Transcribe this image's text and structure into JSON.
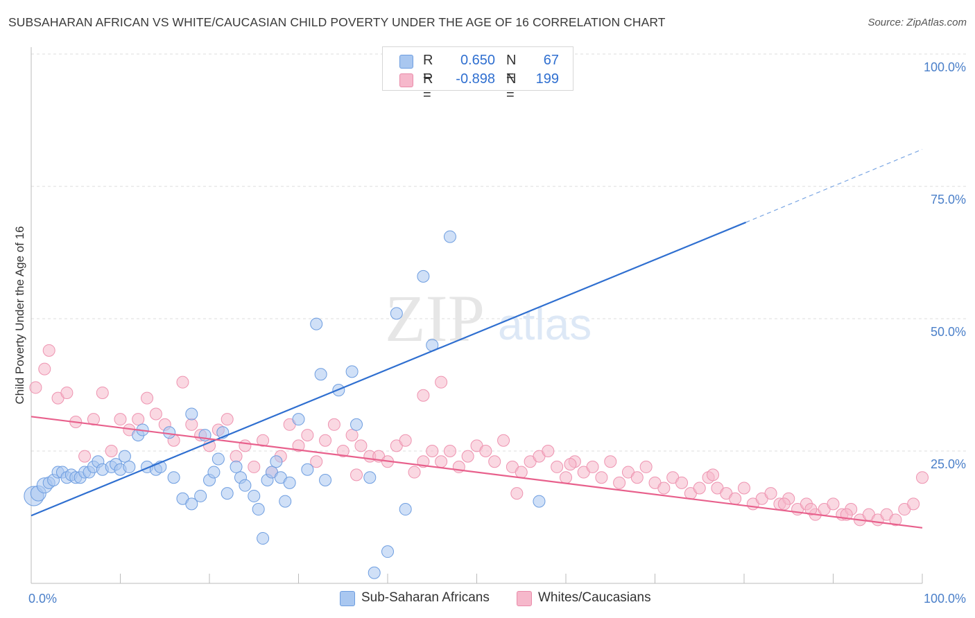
{
  "title": "SUBSAHARAN AFRICAN VS WHITE/CAUCASIAN CHILD POVERTY UNDER THE AGE OF 16 CORRELATION CHART",
  "source": "Source: ZipAtlas.com",
  "watermark": {
    "zip": "ZIP",
    "atlas": "atlas"
  },
  "legend": {
    "rows": [
      {
        "r_label": "R =",
        "r_value": "0.650",
        "n_label": "N =",
        "n_value": "67",
        "color": "#a9c7f0"
      },
      {
        "r_label": "R =",
        "r_value": "-0.898",
        "n_label": "N =",
        "n_value": "199",
        "color": "#f6b8cb"
      }
    ]
  },
  "bottom_legend": [
    {
      "label": "Sub-Saharan Africans",
      "color": "#a9c7f0"
    },
    {
      "label": "Whites/Caucasians",
      "color": "#f6b8cb"
    }
  ],
  "chart_data": {
    "type": "scatter",
    "title": "SUBSAHARAN AFRICAN VS WHITE/CAUCASIAN CHILD POVERTY UNDER THE AGE OF 16 CORRELATION CHART",
    "xlabel": "",
    "ylabel": "Child Poverty Under the Age of 16",
    "x_tick_labels": [
      "0.0%",
      "100.0%"
    ],
    "y_tick_labels": [
      "25.0%",
      "50.0%",
      "75.0%",
      "100.0%"
    ],
    "y_ticks": [
      25,
      50,
      75,
      100
    ],
    "xlim": [
      0,
      100
    ],
    "ylim": [
      0,
      100
    ],
    "grid": true,
    "colors": {
      "blue": "#4a86d9",
      "blue_fill": "#a9c7f0",
      "pink": "#e8608c",
      "pink_fill": "#f6b8cb",
      "tick": "#4a7fc9"
    },
    "series": [
      {
        "name": "Sub-Saharan Africans",
        "color": "#4a86d9",
        "points": [
          [
            0.3,
            16.5
          ],
          [
            0.8,
            17
          ],
          [
            1.5,
            18.5
          ],
          [
            2,
            19
          ],
          [
            2.5,
            19.5
          ],
          [
            3,
            21
          ],
          [
            3.5,
            21
          ],
          [
            4,
            20
          ],
          [
            4.5,
            20.5
          ],
          [
            5,
            20
          ],
          [
            5.5,
            20
          ],
          [
            6,
            21
          ],
          [
            6.5,
            21
          ],
          [
            7,
            22
          ],
          [
            7.5,
            23
          ],
          [
            8,
            21.5
          ],
          [
            9,
            22
          ],
          [
            9.5,
            22.5
          ],
          [
            10,
            21.5
          ],
          [
            10.5,
            24
          ],
          [
            11,
            22
          ],
          [
            12,
            28
          ],
          [
            12.5,
            29
          ],
          [
            13,
            22
          ],
          [
            14,
            21.5
          ],
          [
            14.5,
            22
          ],
          [
            15.5,
            28.5
          ],
          [
            16,
            20
          ],
          [
            17,
            16
          ],
          [
            18,
            15
          ],
          [
            18,
            32
          ],
          [
            19,
            16.5
          ],
          [
            19.5,
            28
          ],
          [
            20,
            19.5
          ],
          [
            20.5,
            21
          ],
          [
            21,
            23.5
          ],
          [
            21.5,
            28.5
          ],
          [
            22,
            17
          ],
          [
            23,
            22
          ],
          [
            23.5,
            20
          ],
          [
            24,
            18.5
          ],
          [
            25,
            16.5
          ],
          [
            25.5,
            14
          ],
          [
            26,
            8.5
          ],
          [
            26.5,
            19.5
          ],
          [
            27,
            21
          ],
          [
            27.5,
            23
          ],
          [
            28,
            20
          ],
          [
            28.5,
            15.5
          ],
          [
            29,
            19
          ],
          [
            30,
            31
          ],
          [
            31,
            21.5
          ],
          [
            32,
            49
          ],
          [
            32.5,
            39.5
          ],
          [
            33,
            19.5
          ],
          [
            34.5,
            36.5
          ],
          [
            36,
            40
          ],
          [
            36.5,
            30
          ],
          [
            38,
            20
          ],
          [
            38.5,
            2
          ],
          [
            40,
            6
          ],
          [
            41,
            51
          ],
          [
            42,
            14
          ],
          [
            44,
            58
          ],
          [
            45,
            45
          ],
          [
            47,
            65.5
          ],
          [
            57,
            15.5
          ]
        ]
      },
      {
        "name": "Whites/Caucasians",
        "color": "#e8608c",
        "points": [
          [
            0.5,
            37
          ],
          [
            1.5,
            40.5
          ],
          [
            2,
            44
          ],
          [
            3,
            35
          ],
          [
            4,
            36
          ],
          [
            5,
            30.5
          ],
          [
            6,
            24
          ],
          [
            7,
            31
          ],
          [
            8,
            36
          ],
          [
            9,
            25
          ],
          [
            10,
            31
          ],
          [
            11,
            29
          ],
          [
            12,
            31
          ],
          [
            13,
            35
          ],
          [
            14,
            32
          ],
          [
            15,
            30
          ],
          [
            16,
            27
          ],
          [
            17,
            38
          ],
          [
            18,
            30
          ],
          [
            19,
            28
          ],
          [
            20,
            26
          ],
          [
            21,
            29
          ],
          [
            22,
            31
          ],
          [
            23,
            24
          ],
          [
            24,
            26
          ],
          [
            25,
            22
          ],
          [
            26,
            27
          ],
          [
            27,
            21
          ],
          [
            28,
            24
          ],
          [
            29,
            30
          ],
          [
            30,
            26
          ],
          [
            31,
            28
          ],
          [
            32,
            23
          ],
          [
            33,
            27
          ],
          [
            34,
            30
          ],
          [
            35,
            25
          ],
          [
            36,
            28
          ],
          [
            37,
            26
          ],
          [
            38,
            24
          ],
          [
            39,
            24
          ],
          [
            40,
            23
          ],
          [
            41,
            26
          ],
          [
            42,
            27
          ],
          [
            43,
            21
          ],
          [
            44,
            23
          ],
          [
            45,
            25
          ],
          [
            46,
            23
          ],
          [
            47,
            25
          ],
          [
            48,
            22
          ],
          [
            49,
            24
          ],
          [
            50,
            26
          ],
          [
            51,
            25
          ],
          [
            52,
            23
          ],
          [
            53,
            27
          ],
          [
            54,
            22
          ],
          [
            55,
            21
          ],
          [
            56,
            23
          ],
          [
            57,
            24
          ],
          [
            58,
            25
          ],
          [
            59,
            22
          ],
          [
            60,
            20
          ],
          [
            61,
            23
          ],
          [
            62,
            21
          ],
          [
            63,
            22
          ],
          [
            64,
            20
          ],
          [
            65,
            23
          ],
          [
            66,
            19
          ],
          [
            67,
            21
          ],
          [
            68,
            20
          ],
          [
            69,
            22
          ],
          [
            70,
            19
          ],
          [
            71,
            18
          ],
          [
            72,
            20
          ],
          [
            73,
            19
          ],
          [
            74,
            17
          ],
          [
            75,
            18
          ],
          [
            76,
            20
          ],
          [
            77,
            18
          ],
          [
            78,
            17
          ],
          [
            79,
            16
          ],
          [
            80,
            18
          ],
          [
            81,
            15
          ],
          [
            82,
            16
          ],
          [
            83,
            17
          ],
          [
            84,
            15
          ],
          [
            85,
            16
          ],
          [
            86,
            14
          ],
          [
            87,
            15
          ],
          [
            88,
            13
          ],
          [
            89,
            14
          ],
          [
            90,
            15
          ],
          [
            91,
            13
          ],
          [
            92,
            14
          ],
          [
            93,
            12
          ],
          [
            94,
            13
          ],
          [
            95,
            12
          ],
          [
            96,
            13
          ],
          [
            97,
            12
          ],
          [
            98,
            14
          ],
          [
            99,
            15
          ],
          [
            100,
            20
          ],
          [
            36.5,
            20.5
          ],
          [
            44,
            35.5
          ],
          [
            46,
            38
          ],
          [
            54.5,
            17
          ],
          [
            60.5,
            22.5
          ],
          [
            76.5,
            20.5
          ],
          [
            84.5,
            15
          ],
          [
            87.5,
            14
          ],
          [
            91.5,
            13
          ]
        ]
      }
    ],
    "trendlines": [
      {
        "series": "Sub-Saharan Africans",
        "x": [
          0,
          80.2
        ],
        "y": [
          12.8,
          68.2
        ],
        "dashed_to": [
          100,
          82
        ]
      },
      {
        "series": "Whites/Caucasians",
        "x": [
          0,
          100
        ],
        "y": [
          31.5,
          10.5
        ]
      }
    ]
  }
}
